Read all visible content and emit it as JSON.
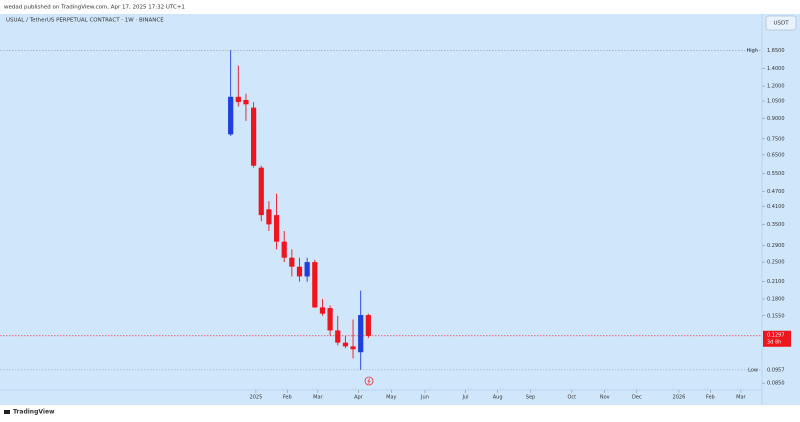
{
  "chart_data": {
    "type": "candlestick",
    "attribution": "wedad published on TradingView.com, Apr 17, 2025 17:32 UTC+1",
    "title": "USUAL / TetherUS PERPETUAL CONTRACT · 1W · BINANCE",
    "currency": "USDT",
    "footer": "TradingView",
    "log_scale": true,
    "up_color": "#1f3fe0",
    "down_color": "#f0141c",
    "x": [
      0,
      1,
      2,
      3,
      4,
      5,
      6,
      7,
      8,
      9,
      10,
      11,
      12,
      13,
      14,
      15,
      16,
      17,
      18
    ],
    "open": [
      0.78,
      1.09,
      1.06,
      0.99,
      0.58,
      0.4,
      0.38,
      0.3,
      0.26,
      0.24,
      0.22,
      0.25,
      0.167,
      0.166,
      0.136,
      0.122,
      0.118,
      0.112,
      0.156
    ],
    "high": [
      1.65,
      1.44,
      1.12,
      1.04,
      0.59,
      0.43,
      0.46,
      0.33,
      0.28,
      0.26,
      0.26,
      0.255,
      0.18,
      0.17,
      0.155,
      0.13,
      0.15,
      0.194,
      0.158
    ],
    "low": [
      0.77,
      1.0,
      0.88,
      0.58,
      0.36,
      0.33,
      0.28,
      0.25,
      0.22,
      0.21,
      0.21,
      0.166,
      0.155,
      0.13,
      0.119,
      0.116,
      0.106,
      0.0957,
      0.127
    ],
    "close": [
      1.09,
      1.04,
      1.02,
      0.59,
      0.38,
      0.35,
      0.3,
      0.26,
      0.24,
      0.22,
      0.25,
      0.167,
      0.158,
      0.136,
      0.122,
      0.118,
      0.115,
      0.156,
      0.1297
    ],
    "xlim": [
      -29.5,
      69.2
    ],
    "xticks": [
      {
        "value": 3.3,
        "label": "2025"
      },
      {
        "value": 7.4,
        "label": "Feb"
      },
      {
        "value": 11.4,
        "label": "Mar"
      },
      {
        "value": 16.7,
        "label": "Apr"
      },
      {
        "value": 21.0,
        "label": "May"
      },
      {
        "value": 25.4,
        "label": "Jun"
      },
      {
        "value": 30.7,
        "label": "Jul"
      },
      {
        "value": 34.9,
        "label": "Aug"
      },
      {
        "value": 39.2,
        "label": "Sep"
      },
      {
        "value": 44.6,
        "label": "Oct"
      },
      {
        "value": 48.9,
        "label": "Nov"
      },
      {
        "value": 53.1,
        "label": "Dec"
      },
      {
        "value": 58.6,
        "label": "2026"
      },
      {
        "value": 62.7,
        "label": "Feb"
      },
      {
        "value": 66.7,
        "label": "Mar"
      }
    ],
    "ylim": [
      0.08,
      2.28
    ],
    "yticks": [
      {
        "value": 1.4,
        "label": "1.4000"
      },
      {
        "value": 1.2,
        "label": "1.2000"
      },
      {
        "value": 1.05,
        "label": "1.0500"
      },
      {
        "value": 0.9,
        "label": "0.9000"
      },
      {
        "value": 0.75,
        "label": "0.7500"
      },
      {
        "value": 0.65,
        "label": "0.6500"
      },
      {
        "value": 0.55,
        "label": "0.5500"
      },
      {
        "value": 0.47,
        "label": "0.4700"
      },
      {
        "value": 0.41,
        "label": "0.4100"
      },
      {
        "value": 0.35,
        "label": "0.3500"
      },
      {
        "value": 0.29,
        "label": "0.2900"
      },
      {
        "value": 0.25,
        "label": "0.2500"
      },
      {
        "value": 0.21,
        "label": "0.2100"
      },
      {
        "value": 0.18,
        "label": "0.1800"
      },
      {
        "value": 0.155,
        "label": "0.1550"
      },
      {
        "value": 0.085,
        "label": "0.0850"
      }
    ],
    "high_marker": {
      "name": "High",
      "value": 1.65,
      "label": "1.6500"
    },
    "low_marker": {
      "name": "Low",
      "value": 0.0957,
      "label": "0.0957"
    },
    "last_price": {
      "value": 0.1297,
      "label": "0.1297",
      "countdown": "3d 8h"
    }
  }
}
